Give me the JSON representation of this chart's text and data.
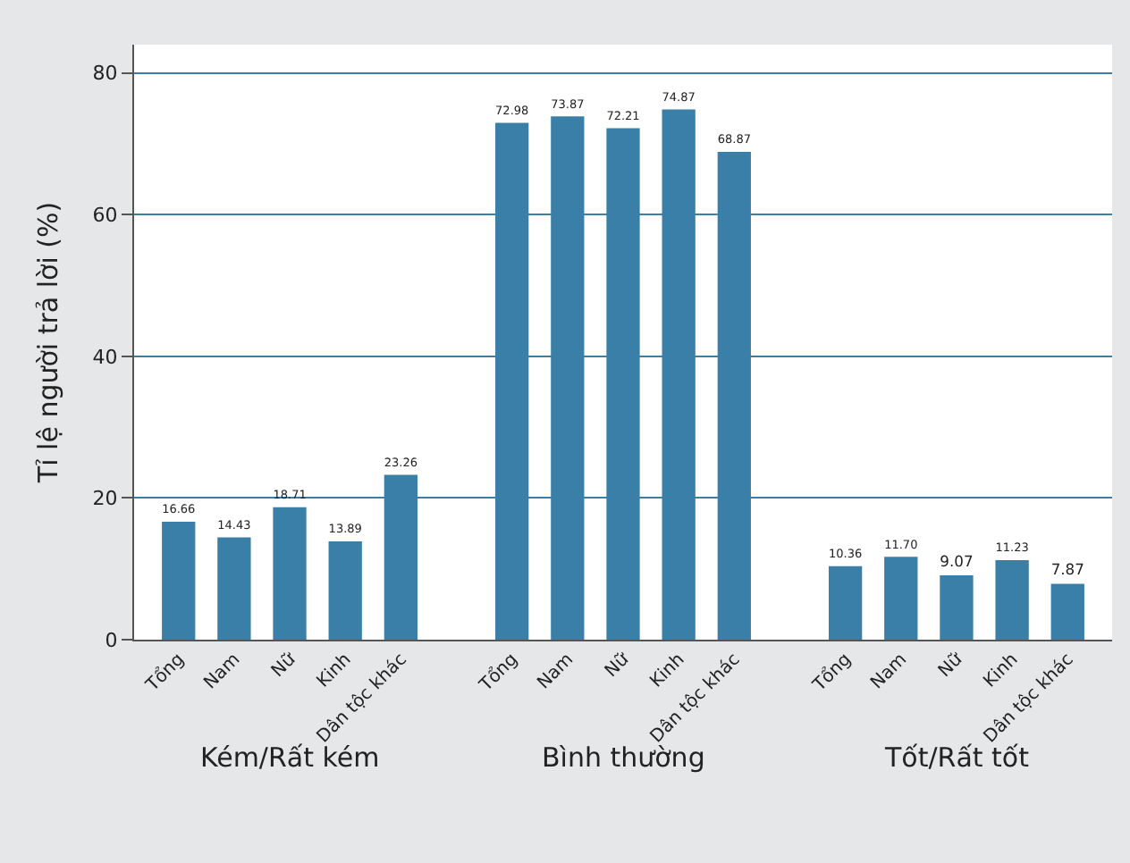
{
  "chart_data": {
    "type": "bar",
    "ylabel": "Tỉ lệ người trả lời (%)",
    "categories": [
      "Tổng",
      "Nam",
      "Nữ",
      "Kinh",
      "Dân tộc khác",
      "Tổng",
      "Nam",
      "Nữ",
      "Kinh",
      "Dân tộc khác",
      "Tổng",
      "Nam",
      "Nữ",
      "Kinh",
      "Dân tộc khác"
    ],
    "values": [
      16.66,
      14.43,
      18.71,
      13.89,
      23.26,
      72.98,
      73.87,
      72.21,
      74.87,
      68.87,
      10.36,
      11.7,
      9.07,
      11.23,
      7.87
    ],
    "value_labels": [
      "16.66",
      "14.43",
      "18.71",
      "13.89",
      "23.26",
      "72.98",
      "73.87",
      "72.21",
      "74.87",
      "68.87",
      "10.36",
      "11.70",
      "9.07",
      "11.23",
      "7.87"
    ],
    "color": "#3a7fa8",
    "ylim": [
      0,
      84
    ],
    "yticks": [
      0,
      20,
      40,
      60,
      80
    ],
    "grid": "y",
    "legend": false,
    "annotations": [
      "Kém/Rất kém",
      "Bình thường",
      "Tốt/Rất tốt"
    ]
  }
}
